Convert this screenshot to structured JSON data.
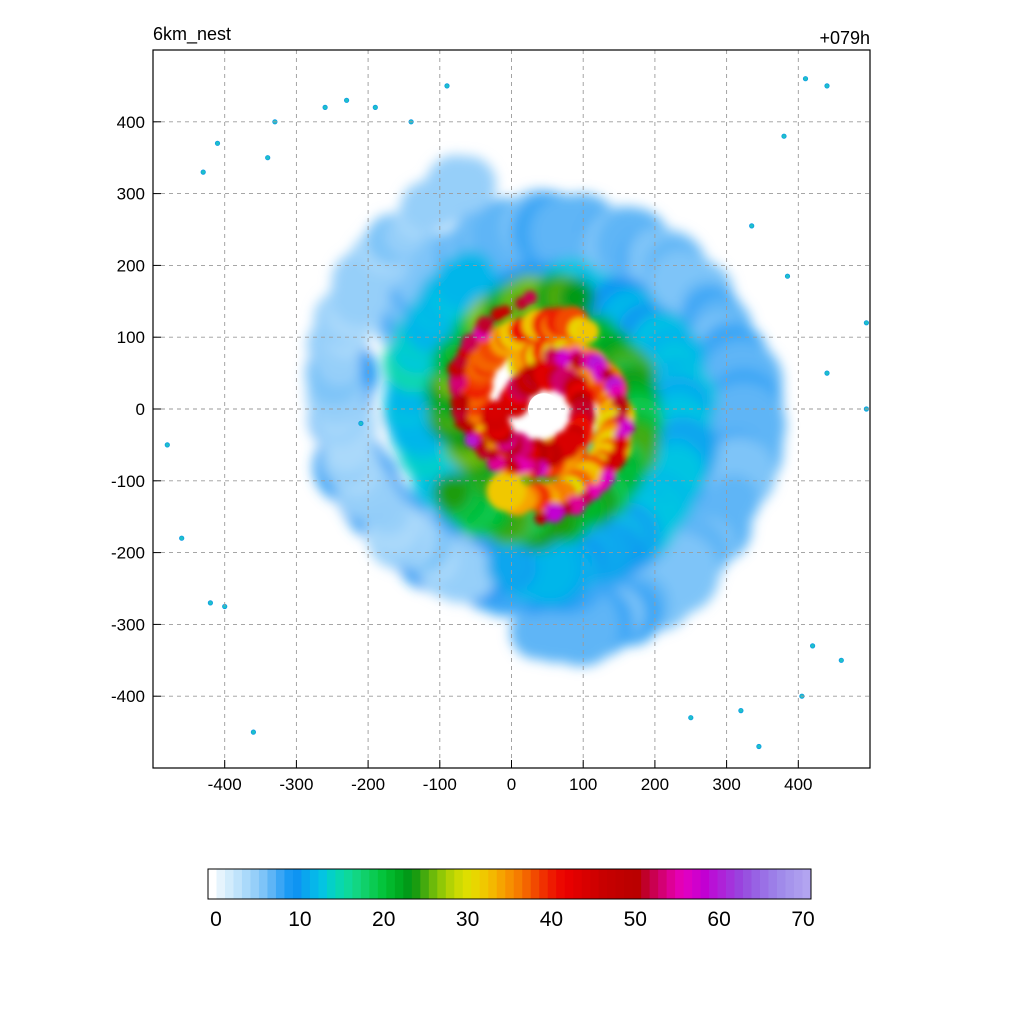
{
  "chart_data": {
    "type": "heatmap",
    "title_left": "6km_nest",
    "title_right": "+079h",
    "xlabel": "",
    "ylabel": "",
    "xlim": [
      -500,
      500
    ],
    "ylim": [
      -500,
      500
    ],
    "x_ticks": [
      -400,
      -300,
      -200,
      -100,
      0,
      100,
      200,
      300,
      400
    ],
    "y_ticks": [
      400,
      300,
      200,
      100,
      0,
      -100,
      -200,
      -300,
      -400
    ],
    "grid": true,
    "grid_style": "dashed",
    "eye_center": [
      45,
      0
    ],
    "colorbar": {
      "orientation": "horizontal",
      "location": "bottom",
      "min": 0,
      "max": 71,
      "tick_labels": [
        0,
        10,
        20,
        30,
        40,
        50,
        60,
        70
      ],
      "colors": [
        "#ffffff",
        "#e6f4fd",
        "#d2ecfc",
        "#bfe3fb",
        "#aad9fa",
        "#96cff9",
        "#7ec4f8",
        "#5eb5f6",
        "#3aa6f5",
        "#1a9af4",
        "#0e94f2",
        "#0aa6ee",
        "#06b6ea",
        "#04c4e2",
        "#04d0c8",
        "#08d7b0",
        "#0ed99a",
        "#12d682",
        "#10d06a",
        "#0acb52",
        "#04c43c",
        "#02b82c",
        "#00aa20",
        "#029a18",
        "#1a9c10",
        "#44aa0e",
        "#6cba0a",
        "#90c806",
        "#b2d204",
        "#ccda02",
        "#dede00",
        "#e8d600",
        "#f0c800",
        "#f4b800",
        "#f6a400",
        "#f79000",
        "#f67c00",
        "#f46400",
        "#f24a00",
        "#f03000",
        "#ee1a00",
        "#ec0800",
        "#e80000",
        "#e00000",
        "#d80000",
        "#d00000",
        "#c80000",
        "#c40000",
        "#c00000",
        "#bc0000",
        "#ba0000",
        "#c0002a",
        "#ca0050",
        "#d40074",
        "#de0096",
        "#e400b4",
        "#de00c4",
        "#d000cc",
        "#c200d2",
        "#b812d6",
        "#ae22d8",
        "#a432dc",
        "#9a42de",
        "#9852e0",
        "#9862e4",
        "#9a70e6",
        "#9c7ee8",
        "#a08aea",
        "#a694ec",
        "#ac9cee",
        "#b2a4f0"
      ]
    },
    "field_components": [
      {
        "feature": "eyewall",
        "radius_km": 45,
        "value": 48
      },
      {
        "feature": "inner_rainbands",
        "radius_km": 120,
        "value": 38
      },
      {
        "feature": "outer_rainbands",
        "radius_km": 220,
        "value": 18
      },
      {
        "feature": "outer_envelope",
        "radius_km": 300,
        "value": 6
      }
    ]
  }
}
